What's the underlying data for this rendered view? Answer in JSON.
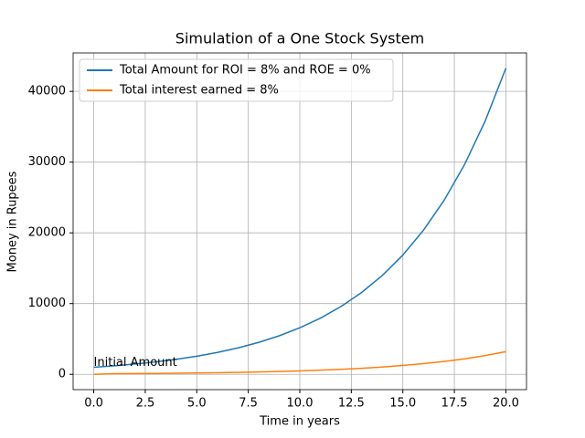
{
  "chart_data": {
    "type": "line",
    "title": "Simulation of a One Stock System",
    "xlabel": "Time in years",
    "ylabel": "Money in Rupees",
    "x": [
      0,
      1,
      2,
      3,
      4,
      5,
      6,
      7,
      8,
      9,
      10,
      11,
      12,
      13,
      14,
      15,
      16,
      17,
      18,
      19,
      20
    ],
    "series": [
      {
        "name": "Total Amount for ROI = 8% and ROE = 0%",
        "color": "#1f77b4",
        "values": [
          1000,
          1207,
          1458,
          1760,
          2124,
          2565,
          3096,
          3738,
          4513,
          5449,
          6578,
          7942,
          9588,
          11576,
          13975,
          16872,
          20370,
          24592,
          29690,
          35845,
          43275
        ]
      },
      {
        "name": "Total interest earned = 8%",
        "color": "#ff7f0e",
        "values": [
          0,
          89,
          108,
          130,
          157,
          190,
          229,
          277,
          334,
          403,
          487,
          588,
          710,
          857,
          1034,
          1249,
          1507,
          1820,
          2197,
          2653,
          3202
        ]
      }
    ],
    "annotations": [
      {
        "text": "Initial Amount",
        "x": 0,
        "y": 1000
      }
    ],
    "xlim": [
      -1,
      21
    ],
    "xticks": [
      {
        "value": 0,
        "label": "0.0"
      },
      {
        "value": 2.5,
        "label": "2.5"
      },
      {
        "value": 5,
        "label": "5.0"
      },
      {
        "value": 7.5,
        "label": "7.5"
      },
      {
        "value": 10,
        "label": "10.0"
      },
      {
        "value": 12.5,
        "label": "12.5"
      },
      {
        "value": 15,
        "label": "15.0"
      },
      {
        "value": 17.5,
        "label": "17.5"
      },
      {
        "value": 20,
        "label": "20.0"
      }
    ],
    "ylim": [
      -2164,
      45439
    ],
    "yticks": [
      0,
      10000,
      20000,
      30000,
      40000
    ],
    "grid": true,
    "legend": "upper-left"
  }
}
